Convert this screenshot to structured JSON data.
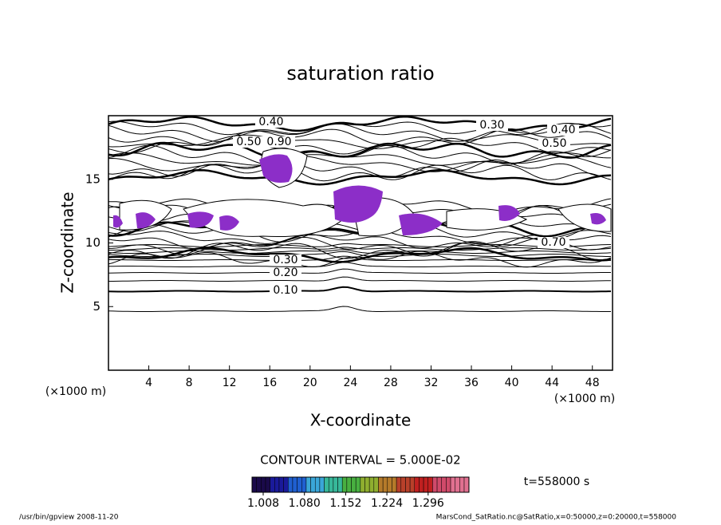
{
  "chart_data": {
    "type": "contour",
    "title": "saturation ratio",
    "x_label": "X-coordinate",
    "y_label": "Z-coordinate",
    "x_unit": "(×1000 m)",
    "y_unit": "(×1000 m)",
    "xlim": [
      0,
      50
    ],
    "ylim": [
      0,
      20
    ],
    "xticks": [
      4,
      8,
      12,
      16,
      20,
      24,
      28,
      32,
      36,
      40,
      44,
      48
    ],
    "yticks": [
      5,
      10,
      15
    ],
    "contour_interval": "CONTOUR INTERVAL = 5.000E-02",
    "contour_labels": [
      {
        "value": 0.1,
        "label": "0.10"
      },
      {
        "value": 0.2,
        "label": "0.20"
      },
      {
        "value": 0.3,
        "label": "0.30"
      },
      {
        "value": 0.4,
        "label": "0.40"
      },
      {
        "value": 0.3,
        "label": "0.30"
      },
      {
        "value": 0.4,
        "label": "0.40"
      },
      {
        "value": 0.5,
        "label": "0.50"
      },
      {
        "value": 0.5,
        "label": "0.50"
      },
      {
        "value": 0.9,
        "label": "0.90"
      },
      {
        "value": 0.7,
        "label": "0.70"
      }
    ],
    "colorbar_ticks": [
      {
        "value": 1.008,
        "label": "1.008"
      },
      {
        "value": 1.08,
        "label": "1.080"
      },
      {
        "value": 1.152,
        "label": "1.152"
      },
      {
        "value": 1.224,
        "label": "1.224"
      },
      {
        "value": 1.296,
        "label": "1.296"
      }
    ],
    "time_label": "t=558000 s",
    "footer_left": "/usr/bin/gpview   2008-11-20",
    "footer_right": "MarsCond_SatRatio.nc@SatRatio,x=0:50000,z=0:20000,t=558000",
    "fill_color": "#8c2ec8"
  }
}
